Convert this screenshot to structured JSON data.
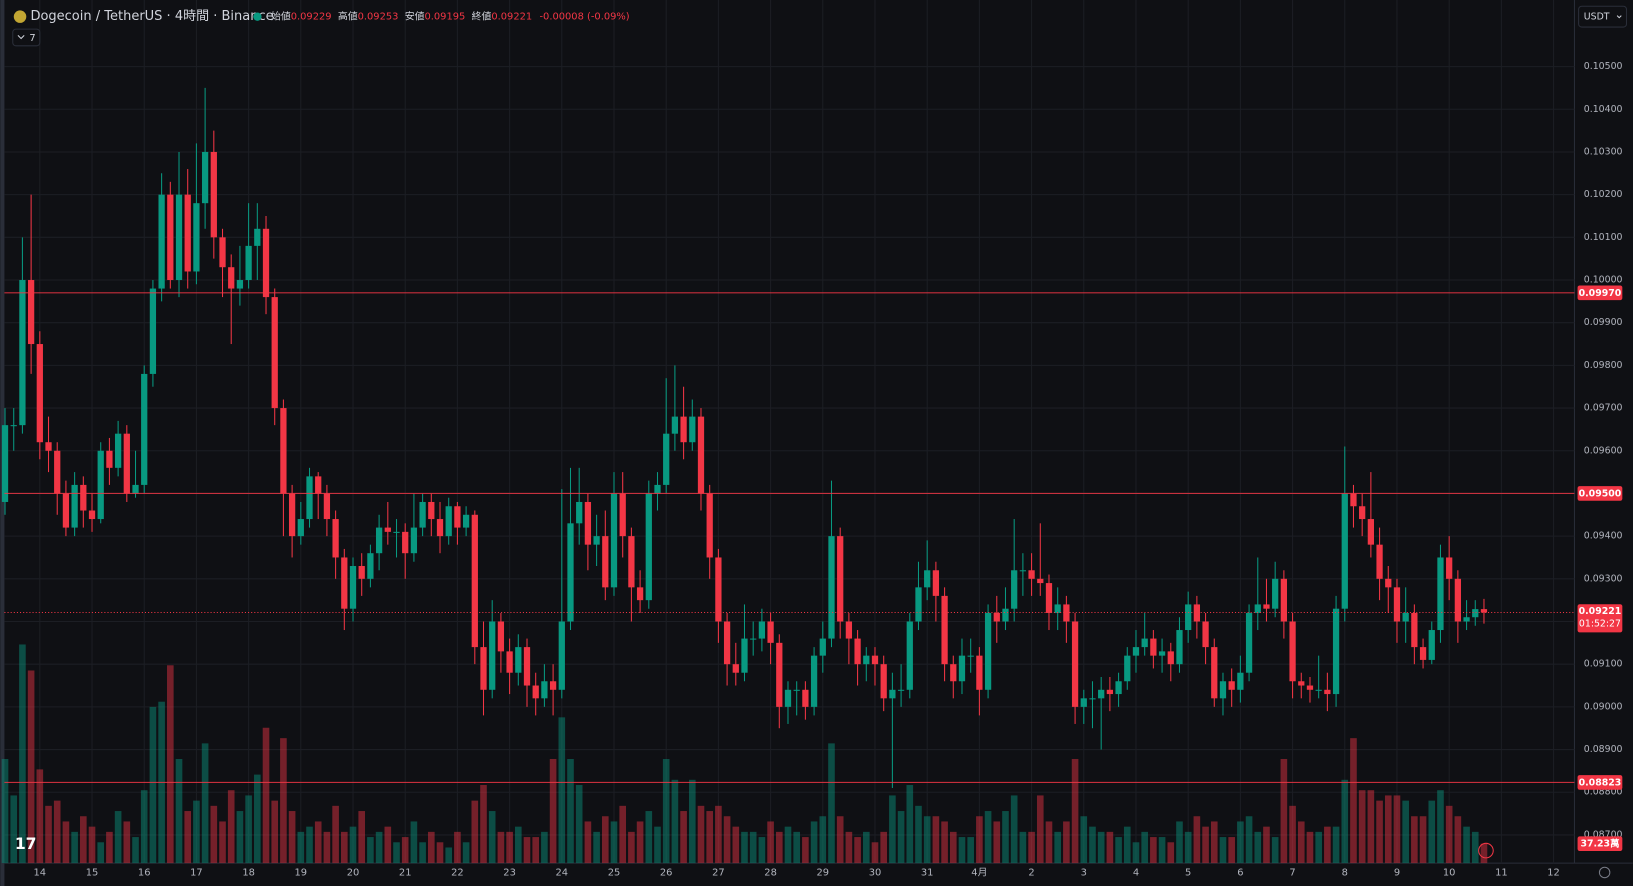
{
  "chart_data": {
    "type": "candlestick",
    "title": "Dogecoin / TetherUS · 4時間 · Binance",
    "open_label": "始値",
    "high_label": "高値",
    "low_label": "安値",
    "close_label": "終値",
    "change": "-0.00008 (-0.09%)",
    "indicator_count": "7",
    "currency": "USDT",
    "countdown": "01:52:27",
    "last_volume_label": "37.23萬",
    "up_color": "#089981",
    "down_color": "#f23645",
    "ylim": [
      0.08634,
      0.10656
    ],
    "yticks": [
      {
        "value": 0.105,
        "label": "0.10500"
      },
      {
        "value": 0.104,
        "label": "0.10400"
      },
      {
        "value": 0.103,
        "label": "0.10300"
      },
      {
        "value": 0.102,
        "label": "0.10200"
      },
      {
        "value": 0.101,
        "label": "0.10100"
      },
      {
        "value": 0.1,
        "label": "0.10000"
      },
      {
        "value": 0.099,
        "label": "0.09900"
      },
      {
        "value": 0.098,
        "label": "0.09800"
      },
      {
        "value": 0.097,
        "label": "0.09700"
      },
      {
        "value": 0.096,
        "label": "0.09600"
      },
      {
        "value": 0.095,
        "label": "0.09500"
      },
      {
        "value": 0.094,
        "label": "0.09400"
      },
      {
        "value": 0.093,
        "label": "0.09300"
      },
      {
        "value": 0.092,
        "label": "0.09200"
      },
      {
        "value": 0.091,
        "label": "0.09100"
      },
      {
        "value": 0.09,
        "label": "0.09000"
      },
      {
        "value": 0.089,
        "label": "0.08900"
      },
      {
        "value": 0.088,
        "label": "0.08800"
      },
      {
        "value": 0.087,
        "label": "0.08700"
      }
    ],
    "price_lines": [
      {
        "value": 0.0997,
        "label": "0.09970"
      },
      {
        "value": 0.095,
        "label": "0.09500"
      },
      {
        "value": 0.08823,
        "label": "0.08823"
      }
    ],
    "grid": true,
    "categories": [
      null,
      null,
      null,
      null,
      "14",
      null,
      null,
      null,
      null,
      null,
      "15",
      null,
      null,
      null,
      null,
      null,
      "16",
      null,
      null,
      null,
      null,
      null,
      "17",
      null,
      null,
      null,
      null,
      null,
      "18",
      null,
      null,
      null,
      null,
      null,
      "19",
      null,
      null,
      null,
      null,
      null,
      "20",
      null,
      null,
      null,
      null,
      null,
      "21",
      null,
      null,
      null,
      null,
      null,
      "22",
      null,
      null,
      null,
      null,
      null,
      "23",
      null,
      null,
      null,
      null,
      null,
      "24",
      null,
      null,
      null,
      null,
      null,
      "25",
      null,
      null,
      null,
      null,
      null,
      "26",
      null,
      null,
      null,
      null,
      null,
      "27",
      null,
      null,
      null,
      null,
      null,
      "28",
      null,
      null,
      null,
      null,
      null,
      "29",
      null,
      null,
      null,
      null,
      null,
      "30",
      null,
      null,
      null,
      null,
      null,
      "31",
      null,
      null,
      null,
      null,
      null,
      "4月",
      null,
      null,
      null,
      null,
      null,
      "2",
      null,
      null,
      null,
      null,
      null,
      "3",
      null,
      null,
      null,
      null,
      null,
      "4",
      null,
      null,
      null,
      null,
      null,
      "5",
      null,
      null,
      null,
      null,
      null,
      "6",
      null,
      null,
      null,
      null,
      null,
      "7",
      null,
      null,
      null,
      null,
      null,
      "8",
      null,
      null,
      null,
      null,
      null,
      "9",
      null,
      null,
      null,
      null,
      null,
      "10",
      null,
      null,
      null,
      null,
      null,
      "11",
      null,
      null,
      null,
      null,
      null,
      "12",
      null,
      null
    ],
    "open": [
      0.0948,
      0.0966,
      0.0966,
      0.1,
      0.0985,
      0.0962,
      0.096,
      0.095,
      0.0942,
      0.0952,
      0.0946,
      0.0944,
      0.096,
      0.0956,
      0.0964,
      0.095,
      0.0952,
      0.0978,
      0.0998,
      0.102,
      0.1,
      0.102,
      0.1002,
      0.1018,
      0.103,
      0.101,
      0.1003,
      0.0998,
      0.1,
      0.1008,
      0.1012,
      0.0996,
      0.097,
      0.095,
      0.094,
      0.0944,
      0.0954,
      0.095,
      0.0944,
      0.0935,
      0.0923,
      0.0933,
      0.093,
      0.0936,
      0.0942,
      0.0941,
      0.0941,
      0.0936,
      0.0942,
      0.0948,
      0.0944,
      0.094,
      0.0947,
      0.0942,
      0.0945,
      0.0914,
      0.0904,
      0.092,
      0.0913,
      0.0908,
      0.0914,
      0.0905,
      0.0902,
      0.0906,
      0.0904,
      0.092,
      0.0943,
      0.0948,
      0.0938,
      0.094,
      0.0928,
      0.095,
      0.094,
      0.0928,
      0.0925,
      0.095,
      0.0952,
      0.0964,
      0.0968,
      0.0962,
      0.0968,
      0.095,
      0.0935,
      0.092,
      0.091,
      0.0908,
      0.0916,
      0.0916,
      0.092,
      0.0915,
      0.09,
      0.0904,
      0.0904,
      0.09,
      0.0912,
      0.0916,
      0.094,
      0.092,
      0.0916,
      0.091,
      0.0912,
      0.091,
      0.0902,
      0.0904,
      0.0904,
      0.092,
      0.0928,
      0.0932,
      0.0926,
      0.091,
      0.0906,
      0.0912,
      0.0912,
      0.0904,
      0.0922,
      0.092,
      0.0923,
      0.0932,
      0.0932,
      0.093,
      0.0929,
      0.0922,
      0.0924,
      0.092,
      0.09,
      0.0902,
      0.0902,
      0.0904,
      0.0903,
      0.0906,
      0.0912,
      0.0914,
      0.0916,
      0.0912,
      0.0913,
      0.091,
      0.0918,
      0.0924,
      0.092,
      0.0914,
      0.0902,
      0.0906,
      0.0904,
      0.0908,
      0.0922,
      0.0924,
      0.0923,
      0.093,
      0.092,
      0.0906,
      0.0905,
      0.0904,
      0.0904,
      0.0903,
      0.0923,
      0.095,
      0.0947,
      0.0944,
      0.0938,
      0.093,
      0.0928,
      0.092,
      0.0922,
      0.0914,
      0.0911,
      0.0918,
      0.0935,
      0.093,
      0.092,
      0.0921,
      0.09229,
      null,
      null,
      null,
      null,
      null,
      null,
      null,
      null,
      null,
      null
    ],
    "high": [
      0.097,
      0.097,
      0.101,
      0.102,
      0.0988,
      0.0968,
      0.0962,
      0.0953,
      0.0955,
      0.0954,
      0.095,
      0.0962,
      0.0963,
      0.0967,
      0.0966,
      0.096,
      0.098,
      0.1,
      0.1025,
      0.1023,
      0.103,
      0.1026,
      0.1032,
      0.1045,
      0.1035,
      0.1012,
      0.1006,
      0.1008,
      0.1018,
      0.1018,
      0.1015,
      0.0998,
      0.0972,
      0.0952,
      0.0948,
      0.0956,
      0.0955,
      0.0952,
      0.0946,
      0.0937,
      0.0935,
      0.0936,
      0.0938,
      0.0945,
      0.0948,
      0.0944,
      0.0943,
      0.095,
      0.095,
      0.095,
      0.0948,
      0.0949,
      0.0948,
      0.0947,
      0.0946,
      0.092,
      0.0925,
      0.0922,
      0.0916,
      0.0917,
      0.0916,
      0.0908,
      0.091,
      0.091,
      0.0951,
      0.0956,
      0.0956,
      0.095,
      0.0945,
      0.0946,
      0.0955,
      0.0955,
      0.0942,
      0.0932,
      0.0953,
      0.0955,
      0.0977,
      0.098,
      0.0975,
      0.0972,
      0.097,
      0.0952,
      0.0937,
      0.0922,
      0.0915,
      0.0924,
      0.092,
      0.0923,
      0.0922,
      0.0917,
      0.0906,
      0.0906,
      0.0906,
      0.0914,
      0.092,
      0.0953,
      0.0942,
      0.0922,
      0.0918,
      0.0914,
      0.0914,
      0.0912,
      0.0908,
      0.091,
      0.0922,
      0.0934,
      0.0939,
      0.0934,
      0.0928,
      0.0912,
      0.0916,
      0.0916,
      0.0914,
      0.0924,
      0.0926,
      0.0928,
      0.0944,
      0.0936,
      0.0936,
      0.0943,
      0.0931,
      0.0928,
      0.0926,
      0.0922,
      0.0904,
      0.0906,
      0.0907,
      0.0907,
      0.0908,
      0.0914,
      0.0918,
      0.0922,
      0.0918,
      0.0916,
      0.0915,
      0.0921,
      0.0927,
      0.0926,
      0.0922,
      0.0916,
      0.0908,
      0.0909,
      0.0912,
      0.0924,
      0.0935,
      0.093,
      0.0934,
      0.0932,
      0.0922,
      0.0908,
      0.0907,
      0.0912,
      0.0908,
      0.0926,
      0.0961,
      0.0952,
      0.095,
      0.0955,
      0.0942,
      0.0933,
      0.093,
      0.0928,
      0.0924,
      0.0916,
      0.092,
      0.0938,
      0.094,
      0.0932,
      0.0925,
      0.0925,
      0.09253,
      null,
      null,
      null,
      null,
      null,
      null,
      null,
      null,
      null,
      null
    ],
    "low": [
      0.0945,
      0.096,
      0.0964,
      0.0978,
      0.0958,
      0.0955,
      0.0945,
      0.094,
      0.094,
      0.0942,
      0.0941,
      0.0943,
      0.0952,
      0.0954,
      0.0948,
      0.0949,
      0.095,
      0.0975,
      0.0995,
      0.0998,
      0.0996,
      0.0998,
      0.0999,
      0.1012,
      0.1005,
      0.0996,
      0.0985,
      0.0994,
      0.0998,
      0.1,
      0.0992,
      0.0966,
      0.094,
      0.0935,
      0.0938,
      0.0942,
      0.0944,
      0.094,
      0.093,
      0.0918,
      0.092,
      0.0926,
      0.0928,
      0.0932,
      0.0938,
      0.0935,
      0.093,
      0.0934,
      0.094,
      0.094,
      0.0936,
      0.0938,
      0.0938,
      0.094,
      0.091,
      0.0898,
      0.0902,
      0.0908,
      0.0903,
      0.0905,
      0.09,
      0.0898,
      0.09,
      0.0898,
      0.0902,
      0.0918,
      0.0938,
      0.0932,
      0.0933,
      0.0925,
      0.0926,
      0.0935,
      0.092,
      0.0922,
      0.0923,
      0.0946,
      0.095,
      0.096,
      0.0958,
      0.096,
      0.0946,
      0.093,
      0.0915,
      0.0905,
      0.0905,
      0.0906,
      0.0912,
      0.0913,
      0.091,
      0.0895,
      0.0896,
      0.0898,
      0.0897,
      0.0898,
      0.0908,
      0.0914,
      0.0916,
      0.091,
      0.0905,
      0.0906,
      0.0905,
      0.0899,
      0.0881,
      0.09,
      0.0902,
      0.0918,
      0.0925,
      0.092,
      0.0906,
      0.0902,
      0.0903,
      0.0908,
      0.0898,
      0.0902,
      0.0915,
      0.0918,
      0.092,
      0.0926,
      0.0926,
      0.0926,
      0.0918,
      0.0918,
      0.0915,
      0.0896,
      0.0896,
      0.0895,
      0.089,
      0.0899,
      0.09,
      0.0904,
      0.0908,
      0.0912,
      0.0909,
      0.0908,
      0.0906,
      0.0908,
      0.0915,
      0.0916,
      0.091,
      0.09,
      0.0898,
      0.09,
      0.0901,
      0.0906,
      0.0918,
      0.092,
      0.0921,
      0.0916,
      0.0902,
      0.0902,
      0.0901,
      0.0902,
      0.0899,
      0.09,
      0.092,
      0.0942,
      0.094,
      0.0935,
      0.0925,
      0.0922,
      0.0915,
      0.0915,
      0.091,
      0.0909,
      0.091,
      0.0915,
      0.0925,
      0.0915,
      0.0918,
      0.0919,
      0.09195,
      null,
      null,
      null,
      null,
      null,
      null,
      null,
      null,
      null,
      null
    ],
    "close": [
      0.0966,
      0.0966,
      0.1,
      0.0985,
      0.0962,
      0.096,
      0.095,
      0.0942,
      0.0952,
      0.0946,
      0.0944,
      0.096,
      0.0956,
      0.0964,
      0.095,
      0.0952,
      0.0978,
      0.0998,
      0.102,
      0.1,
      0.102,
      0.1002,
      0.1018,
      0.103,
      0.101,
      0.1003,
      0.0998,
      0.1,
      0.1008,
      0.1012,
      0.0996,
      0.097,
      0.095,
      0.094,
      0.0944,
      0.0954,
      0.095,
      0.0944,
      0.0935,
      0.0923,
      0.0933,
      0.093,
      0.0936,
      0.0942,
      0.0941,
      0.0941,
      0.0936,
      0.0942,
      0.0948,
      0.0944,
      0.094,
      0.0947,
      0.0942,
      0.0945,
      0.0914,
      0.0904,
      0.092,
      0.0913,
      0.0908,
      0.0914,
      0.0905,
      0.0902,
      0.0906,
      0.0904,
      0.092,
      0.0943,
      0.0948,
      0.0938,
      0.094,
      0.0928,
      0.095,
      0.094,
      0.0928,
      0.0925,
      0.095,
      0.0952,
      0.0964,
      0.0968,
      0.0962,
      0.0968,
      0.095,
      0.0935,
      0.092,
      0.091,
      0.0908,
      0.0916,
      0.0916,
      0.092,
      0.0915,
      0.09,
      0.0904,
      0.0904,
      0.09,
      0.0912,
      0.0916,
      0.094,
      0.092,
      0.0916,
      0.091,
      0.0912,
      0.091,
      0.0902,
      0.0904,
      0.0904,
      0.092,
      0.0928,
      0.0932,
      0.0926,
      0.091,
      0.0906,
      0.0912,
      0.0912,
      0.0904,
      0.0922,
      0.092,
      0.0923,
      0.0932,
      0.0932,
      0.093,
      0.0929,
      0.0922,
      0.0924,
      0.092,
      0.09,
      0.0902,
      0.0902,
      0.0904,
      0.0903,
      0.0906,
      0.0912,
      0.0914,
      0.0916,
      0.0912,
      0.0913,
      0.091,
      0.0918,
      0.0924,
      0.092,
      0.0914,
      0.0902,
      0.0906,
      0.0904,
      0.0908,
      0.0922,
      0.0924,
      0.0923,
      0.093,
      0.092,
      0.0906,
      0.0905,
      0.0904,
      0.0904,
      0.0903,
      0.0923,
      0.095,
      0.0947,
      0.0944,
      0.0938,
      0.093,
      0.0928,
      0.092,
      0.0922,
      0.0914,
      0.0911,
      0.0918,
      0.0935,
      0.093,
      0.092,
      0.0921,
      0.09229,
      0.09221,
      null,
      null,
      null,
      null,
      null,
      null,
      null,
      null,
      null,
      null
    ],
    "volume": [
      200,
      130,
      420,
      370,
      180,
      110,
      120,
      80,
      60,
      90,
      70,
      40,
      60,
      100,
      80,
      50,
      140,
      300,
      310,
      380,
      200,
      100,
      120,
      230,
      110,
      80,
      140,
      100,
      130,
      170,
      260,
      120,
      240,
      100,
      60,
      70,
      80,
      60,
      110,
      60,
      70,
      100,
      50,
      60,
      70,
      40,
      50,
      80,
      40,
      60,
      40,
      30,
      60,
      40,
      120,
      150,
      100,
      60,
      60,
      70,
      50,
      50,
      60,
      200,
      280,
      200,
      150,
      80,
      60,
      90,
      80,
      110,
      60,
      80,
      100,
      70,
      200,
      160,
      100,
      160,
      110,
      100,
      110,
      90,
      70,
      60,
      60,
      50,
      80,
      60,
      70,
      60,
      50,
      80,
      90,
      230,
      90,
      60,
      50,
      60,
      40,
      60,
      130,
      100,
      150,
      110,
      90,
      90,
      80,
      60,
      50,
      50,
      90,
      100,
      80,
      100,
      130,
      60,
      60,
      130,
      80,
      60,
      80,
      200,
      90,
      70,
      60,
      60,
      50,
      70,
      40,
      60,
      50,
      50,
      40,
      80,
      60,
      90,
      70,
      80,
      50,
      50,
      80,
      90,
      60,
      70,
      50,
      200,
      110,
      80,
      60,
      60,
      70,
      70,
      160,
      240,
      140,
      140,
      120,
      130,
      130,
      120,
      90,
      90,
      120,
      140,
      110,
      90,
      70,
      60,
      37.23,
      null,
      null,
      null,
      null,
      null,
      null,
      null,
      null,
      null,
      null
    ]
  }
}
